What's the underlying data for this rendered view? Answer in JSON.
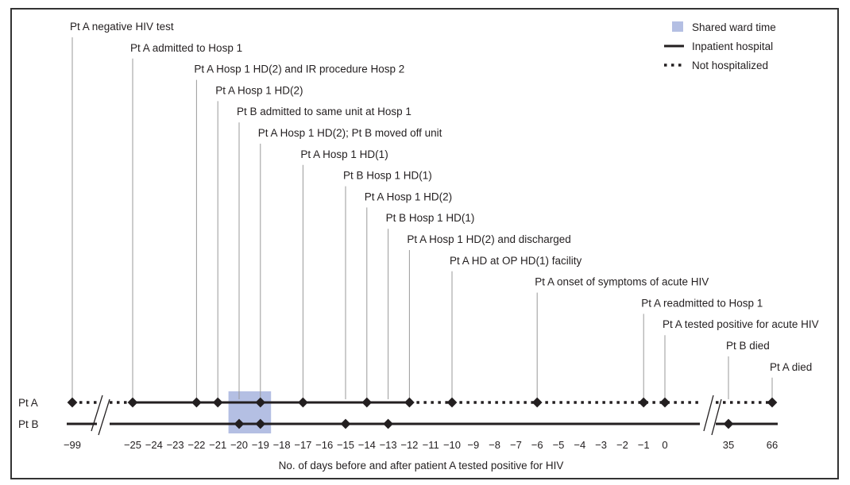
{
  "chart_data": {
    "type": "timeline",
    "xlabel": "No. of days before and after patient A tested positive for HIV",
    "tick_labels": [
      "−99",
      "−25",
      "−24",
      "−23",
      "−22",
      "−21",
      "−20",
      "−19",
      "−18",
      "−17",
      "−16",
      "−15",
      "−14",
      "−13",
      "−12",
      "−11",
      "−10",
      "−9",
      "−8",
      "−7",
      "−6",
      "−5",
      "−4",
      "−3",
      "−2",
      "−1",
      "0",
      "35",
      "66"
    ],
    "tick_values": [
      -99,
      -25,
      -24,
      -23,
      -22,
      -21,
      -20,
      -19,
      -18,
      -17,
      -16,
      -15,
      -14,
      -13,
      -12,
      -11,
      -10,
      -9,
      -8,
      -7,
      -6,
      -5,
      -4,
      -3,
      -2,
      -1,
      0,
      35,
      66
    ],
    "legend": {
      "placement": "top-right",
      "items": [
        {
          "label": "Shared ward time",
          "style": "shaded",
          "color": "#b4bfe3"
        },
        {
          "label": "Inpatient  hospital",
          "style": "solid"
        },
        {
          "label": "Not hospitalized",
          "style": "dotted"
        }
      ]
    },
    "series": [
      {
        "name": "Pt A",
        "events": [
          -99,
          -25,
          -22,
          -21,
          -19,
          -17,
          -14,
          -12,
          -10,
          -6,
          -1,
          0,
          66
        ],
        "segments": [
          {
            "from": -99,
            "to": -25,
            "style": "dotted"
          },
          {
            "from": -25,
            "to": -12,
            "style": "solid"
          },
          {
            "from": -12,
            "to": 66,
            "style": "dotted"
          }
        ]
      },
      {
        "name": "Pt B",
        "events": [
          -20,
          -19,
          -15,
          -13,
          35
        ],
        "segments": [
          {
            "from": -99,
            "to": 66,
            "style": "solid"
          }
        ]
      }
    ],
    "shared_ward": {
      "from": -20.5,
      "to": -18.5
    },
    "annotations": [
      {
        "day": -99,
        "text": "Pt A negative HIV test"
      },
      {
        "day": -25,
        "text": "Pt A admitted to Hosp 1"
      },
      {
        "day": -22,
        "text": "Pt A Hosp 1 HD(2) and IR procedure Hosp 2"
      },
      {
        "day": -21,
        "text": "Pt A Hosp 1 HD(2)"
      },
      {
        "day": -20,
        "text": "Pt B admitted to same unit at Hosp 1"
      },
      {
        "day": -19,
        "text": "Pt A Hosp 1 HD(2); Pt B moved off unit"
      },
      {
        "day": -17,
        "text": "Pt A Hosp 1 HD(1)"
      },
      {
        "day": -15,
        "text": "Pt B Hosp 1 HD(1)"
      },
      {
        "day": -14,
        "text": "Pt A Hosp 1 HD(2)"
      },
      {
        "day": -13,
        "text": "Pt B Hosp 1 HD(1)"
      },
      {
        "day": -12,
        "text": "Pt A Hosp 1 HD(2) and discharged"
      },
      {
        "day": -10,
        "text": "Pt A HD at OP HD(1) facility"
      },
      {
        "day": -6,
        "text": "Pt A onset of symptoms of acute HIV"
      },
      {
        "day": -1,
        "text": "Pt A readmitted to Hosp 1"
      },
      {
        "day": 0,
        "text": "Pt A tested positive for acute HIV"
      },
      {
        "day": 35,
        "text": "Pt B died"
      },
      {
        "day": 66,
        "text": "Pt A died"
      }
    ]
  }
}
